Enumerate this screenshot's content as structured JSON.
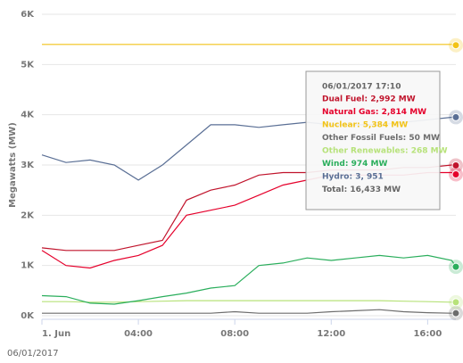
{
  "chart_data": {
    "type": "line",
    "y_axis_label": "Megawatts (MW)",
    "date_label": "06/01/2017",
    "x": [
      0,
      1,
      2,
      3,
      4,
      5,
      6,
      7,
      8,
      9,
      10,
      11,
      12,
      13,
      14,
      15,
      16,
      17,
      17.17
    ],
    "xlim": [
      0,
      17.17
    ],
    "xticks": [
      {
        "value": 0,
        "label": "1. Jun"
      },
      {
        "value": 4,
        "label": "04:00"
      },
      {
        "value": 8,
        "label": "08:00"
      },
      {
        "value": 12,
        "label": "12:00"
      },
      {
        "value": 16,
        "label": "16:00"
      }
    ],
    "ylim": [
      0,
      6000
    ],
    "yticks": [
      {
        "value": 0,
        "label": "0K"
      },
      {
        "value": 1000,
        "label": "1K"
      },
      {
        "value": 2000,
        "label": "2K"
      },
      {
        "value": 3000,
        "label": "3K"
      },
      {
        "value": 4000,
        "label": "4K"
      },
      {
        "value": 5000,
        "label": "5K"
      },
      {
        "value": 6000,
        "label": "6K"
      }
    ],
    "grid": true,
    "series": [
      {
        "name": "Dual Fuel",
        "color": "#c0142c",
        "values": [
          1350,
          1300,
          1300,
          1300,
          1400,
          1500,
          2300,
          2500,
          2600,
          2800,
          2850,
          2850,
          2900,
          2900,
          2900,
          2950,
          2950,
          3000,
          2992
        ]
      },
      {
        "name": "Natural Gas",
        "color": "#e5002b",
        "values": [
          1300,
          1000,
          950,
          1100,
          1200,
          1400,
          2000,
          2100,
          2200,
          2400,
          2600,
          2700,
          2800,
          2800,
          2800,
          2800,
          2850,
          2850,
          2814
        ]
      },
      {
        "name": "Nuclear",
        "color": "#f2c318",
        "values": [
          5400,
          5400,
          5400,
          5400,
          5400,
          5400,
          5400,
          5400,
          5400,
          5400,
          5400,
          5400,
          5400,
          5400,
          5400,
          5400,
          5400,
          5400,
          5384
        ]
      },
      {
        "name": "Other Fossil Fuels",
        "color": "#6d6d6d",
        "values": [
          50,
          50,
          50,
          50,
          50,
          50,
          50,
          50,
          80,
          50,
          50,
          50,
          80,
          100,
          120,
          80,
          60,
          50,
          50
        ]
      },
      {
        "name": "Other Renewables",
        "color": "#b7e27a",
        "values": [
          280,
          280,
          270,
          270,
          280,
          290,
          300,
          300,
          300,
          300,
          300,
          300,
          300,
          300,
          300,
          290,
          280,
          270,
          268
        ]
      },
      {
        "name": "Wind",
        "color": "#2aae5c",
        "values": [
          400,
          380,
          250,
          230,
          300,
          380,
          450,
          550,
          600,
          1000,
          1050,
          1150,
          1100,
          1150,
          1200,
          1150,
          1200,
          1100,
          974
        ]
      },
      {
        "name": "Hydro",
        "color": "#5a6f95",
        "values": [
          3200,
          3050,
          3100,
          3000,
          2700,
          3000,
          3400,
          3800,
          3800,
          3750,
          3800,
          3850,
          3800,
          3800,
          3800,
          3850,
          3900,
          3950,
          3951
        ]
      }
    ],
    "tooltip": {
      "header": "06/01/2017 17:10",
      "lines": [
        "Dual Fuel: 2,992 MW",
        "Natural Gas: 2,814 MW",
        "Nuclear: 5,384 MW",
        "Other Fossil Fuels: 50 MW",
        "Other Renewables: 268 MW",
        "Wind: 974 MW",
        "Hydro: 3, 951"
      ],
      "total": "Total: 16,433 MW"
    }
  }
}
